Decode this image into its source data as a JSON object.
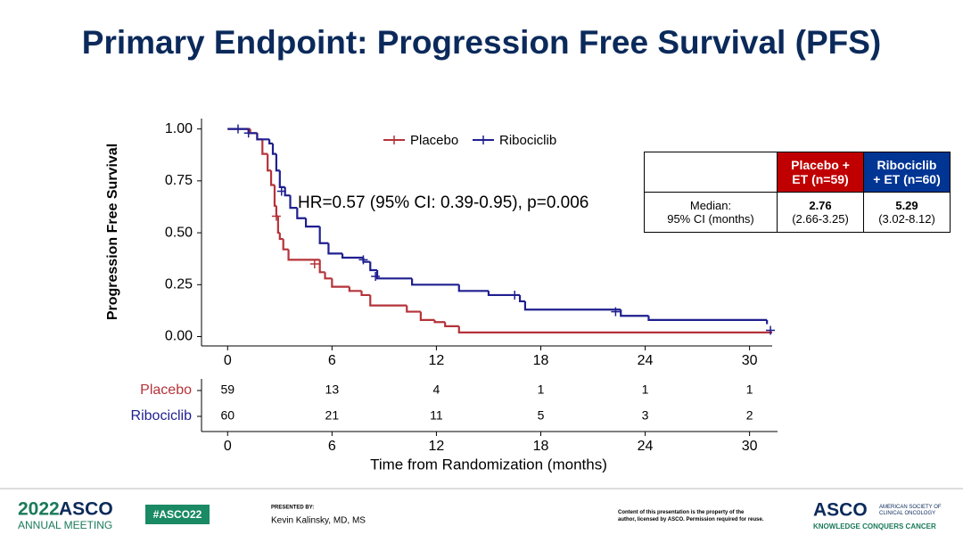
{
  "title": "Primary Endpoint: Progression Free Survival (PFS)",
  "chart_data": {
    "type": "step",
    "ylabel": "Progression Free Survival",
    "annotation": "HR=0.57 (95% CI: 0.39-0.95), p=0.006",
    "xlim": [
      -1.5,
      31.3
    ],
    "ylim": [
      -0.045,
      1.05
    ],
    "xticks": [
      0,
      6,
      12,
      18,
      24,
      30
    ],
    "yticks": [
      {
        "value": 0,
        "label": "0.00"
      },
      {
        "value": 0.25,
        "label": "0.25"
      },
      {
        "value": 0.5,
        "label": "0.50"
      },
      {
        "value": 0.75,
        "label": "0.75"
      },
      {
        "value": 1,
        "label": "1.00"
      }
    ],
    "series": [
      {
        "name": "Placebo",
        "color": "#b5333a",
        "x": [
          0,
          1.3,
          1.7,
          2.0,
          2.3,
          2.5,
          2.7,
          2.8,
          2.9,
          3.0,
          3.2,
          3.5,
          5.3,
          5.6,
          6.0,
          7.0,
          7.7,
          8.2,
          10.3,
          11.1,
          11.9,
          12.5,
          13.3,
          31.3
        ],
        "values": [
          1.0,
          0.98,
          0.95,
          0.88,
          0.8,
          0.73,
          0.63,
          0.58,
          0.5,
          0.47,
          0.42,
          0.37,
          0.31,
          0.28,
          0.24,
          0.22,
          0.2,
          0.15,
          0.12,
          0.08,
          0.07,
          0.05,
          0.02,
          0.02
        ],
        "censored": {
          "x": [
            2.8,
            5.0
          ],
          "y": [
            0.58,
            0.35
          ]
        }
      },
      {
        "name": "Ribociclib",
        "color": "#1f1f8f",
        "x": [
          0,
          1.2,
          1.7,
          2.4,
          2.6,
          2.8,
          3.0,
          3.3,
          3.6,
          4.0,
          4.5,
          5.3,
          5.8,
          6.6,
          7.8,
          8.2,
          8.6,
          10.6,
          13.3,
          15.0,
          16.8,
          17.1,
          22.6,
          24.2,
          31.0
        ],
        "values": [
          1.0,
          0.98,
          0.95,
          0.93,
          0.88,
          0.8,
          0.72,
          0.68,
          0.62,
          0.57,
          0.53,
          0.45,
          0.4,
          0.38,
          0.36,
          0.32,
          0.28,
          0.25,
          0.22,
          0.2,
          0.17,
          0.13,
          0.1,
          0.08,
          0.06
        ],
        "censored": {
          "x": [
            0.6,
            1.2,
            3.1,
            7.8,
            8.5,
            16.5,
            22.3,
            31.2
          ],
          "y": [
            1.0,
            0.98,
            0.7,
            0.37,
            0.29,
            0.2,
            0.12,
            0.03
          ]
        }
      }
    ]
  },
  "risk_table": {
    "xlabel": "Time from Randomization (months)",
    "xticks": [
      0,
      6,
      12,
      18,
      24,
      30
    ],
    "groups": [
      {
        "name": "Placebo",
        "color": "#b5333a",
        "counts": [
          59,
          13,
          4,
          1,
          1,
          1
        ]
      },
      {
        "name": "Ribociclib",
        "color": "#1f1f8f",
        "counts": [
          60,
          21,
          11,
          5,
          3,
          2
        ]
      }
    ]
  },
  "median_table": {
    "headers": [
      "Placebo +\nET (n=59)",
      "Ribociclib\n+ ET (n=60)"
    ],
    "row_label": "Median:\n95% CI (months)",
    "medians": [
      "2.76",
      "5.29"
    ],
    "ci": [
      "(2.66-3.25)",
      "(3.02-8.12)"
    ]
  },
  "footer": {
    "meeting_year": "2022",
    "meeting_name": "ASCO",
    "meeting_sub": "ANNUAL MEETING",
    "hashtag": "#ASCO22",
    "presented_by": "PRESENTED BY:",
    "presenter": "Kevin Kalinsky, MD, MS",
    "disclaimer": "Content of this presentation is the property of the\nauthor, licensed by ASCO. Permission required for reuse.",
    "org": "ASCO",
    "org_full": "AMERICAN SOCIETY OF\nCLINICAL ONCOLOGY",
    "tagline": "KNOWLEDGE CONQUERS CANCER"
  }
}
